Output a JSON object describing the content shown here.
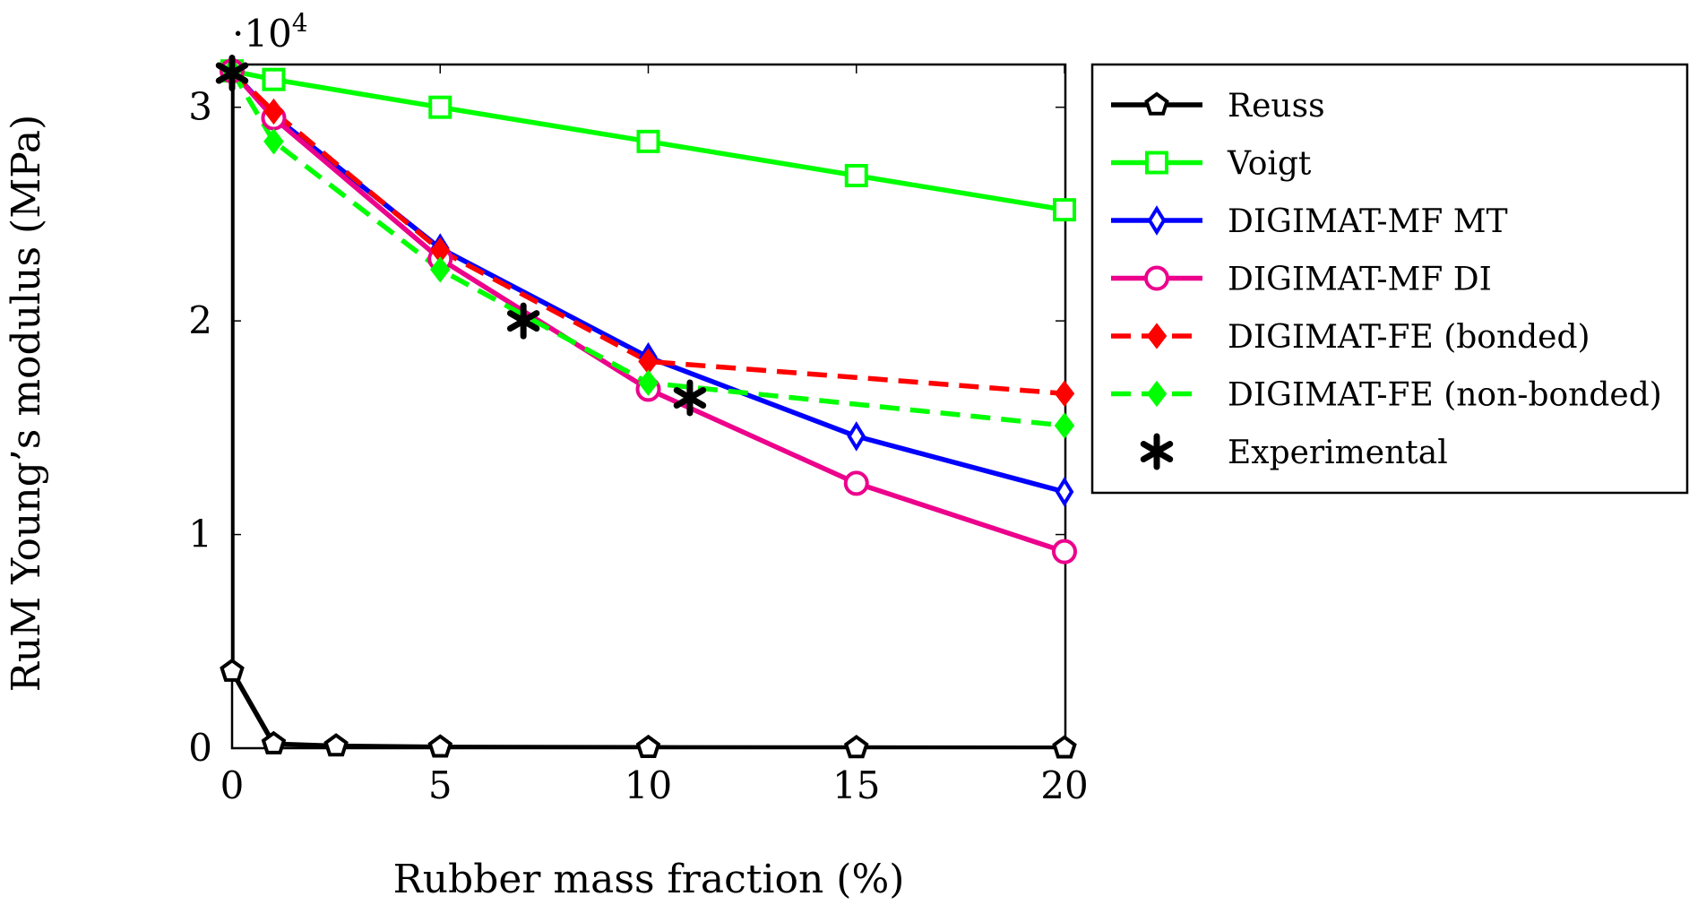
{
  "chart_data": {
    "type": "line",
    "title": "",
    "xlabel": "Rubber mass fraction (%)",
    "ylabel": "RuM Young’s modulus (MPa)",
    "y_multiplier": "·10",
    "y_multiplier_exp": "4",
    "xlim": [
      0,
      20
    ],
    "ylim": [
      0,
      3.2
    ],
    "y_scale": 10000,
    "xticks": [
      0,
      5,
      10,
      15,
      20
    ],
    "yticks": [
      0,
      1,
      2,
      3
    ],
    "xtick_labels": [
      "0",
      "5",
      "10",
      "15",
      "20"
    ],
    "ytick_labels": [
      "0",
      "1",
      "2",
      "3"
    ],
    "grid": false,
    "legend_position": "outside-right-top",
    "series": [
      {
        "name": "Reuss",
        "color": "#000000",
        "line": "solid",
        "marker": "pentagon",
        "x": [
          0,
          0,
          1,
          2.5,
          5,
          10,
          15,
          20
        ],
        "y": [
          3.17,
          0.36,
          0.02,
          0.01,
          0.005,
          0.003,
          0.002,
          0.001
        ]
      },
      {
        "name": "Voigt",
        "color": "#00ff00",
        "line": "solid",
        "marker": "square",
        "x": [
          0,
          1,
          5,
          10,
          15,
          20
        ],
        "y": [
          3.17,
          3.13,
          3.0,
          2.84,
          2.68,
          2.52
        ]
      },
      {
        "name": "DIGIMAT-MF MT",
        "color": "#0000ff",
        "line": "solid",
        "marker": "diamond",
        "x": [
          0,
          1,
          5,
          10,
          15,
          20
        ],
        "y": [
          3.17,
          2.96,
          2.34,
          1.83,
          1.46,
          1.2
        ]
      },
      {
        "name": "DIGIMAT-MF DI",
        "color": "#ec008c",
        "line": "solid",
        "marker": "circle",
        "x": [
          0,
          1,
          5,
          10,
          15,
          20
        ],
        "y": [
          3.17,
          2.95,
          2.29,
          1.68,
          1.24,
          0.92
        ]
      },
      {
        "name": "DIGIMAT-FE (bonded)",
        "color": "#ff0000",
        "line": "dashed",
        "marker": "diamond-filled",
        "x": [
          0,
          1,
          5,
          10,
          20
        ],
        "y": [
          3.17,
          2.98,
          2.33,
          1.81,
          1.66
        ]
      },
      {
        "name": "DIGIMAT-FE (non-bonded)",
        "color": "#00ff00",
        "line": "dashed",
        "marker": "diamond-filled",
        "x": [
          0,
          1,
          5,
          10,
          20
        ],
        "y": [
          3.17,
          2.84,
          2.24,
          1.71,
          1.51
        ]
      },
      {
        "name": "Experimental",
        "color": "#000000",
        "line": "none",
        "marker": "asterisk",
        "x": [
          0,
          7,
          11
        ],
        "y": [
          3.16,
          2.0,
          1.64
        ]
      }
    ]
  }
}
